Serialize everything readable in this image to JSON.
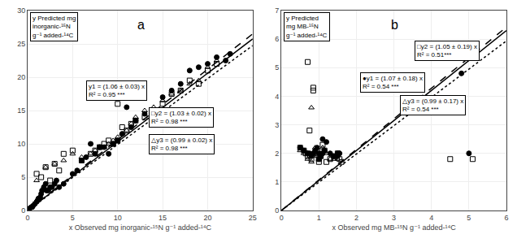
{
  "chart_data": [
    {
      "type": "scatter",
      "title": "a",
      "x_label": "x Observed mg inorganic-¹⁵N g⁻¹ added-¹⁴C",
      "y_label": "y Predicted mg\ninorganic-¹⁵N\ng⁻¹ added-¹⁴C",
      "xlim": [
        0,
        25
      ],
      "ylim": [
        0,
        30
      ],
      "xticks": [
        0,
        5,
        10,
        15,
        20,
        25
      ],
      "yticks": [
        0,
        5,
        10,
        15,
        20,
        25,
        30
      ],
      "grid": true,
      "series": [
        {
          "type": "line",
          "line_style": "dotted",
          "color": "#000000",
          "x": [
            0,
            25
          ],
          "values": [
            0,
            24.75
          ]
        },
        {
          "type": "line",
          "line_style": "solid",
          "color": "#000000",
          "x": [
            0,
            25
          ],
          "values": [
            0,
            25.75
          ]
        },
        {
          "type": "line",
          "line_style": "dashed",
          "color": "#000000",
          "x": [
            0,
            25
          ],
          "values": [
            0,
            26.5
          ]
        },
        {
          "type": "scatter",
          "marker": "circle",
          "color": "#000000",
          "x": [
            0.2,
            0.4,
            0.5,
            0.6,
            0.8,
            1.0,
            1.1,
            1.2,
            1.4,
            1.5,
            1.6,
            1.8,
            2.0,
            2.1,
            2.3,
            2.5,
            2.7,
            3.0,
            3.2,
            3.5,
            4.0,
            5.0,
            5.5,
            6.0,
            6.5,
            7.0,
            7.5,
            8.0,
            8.5,
            9.0,
            9.5,
            10.0,
            10.5,
            11.0,
            11.5,
            12.0,
            13.0,
            14.0,
            15.0,
            16.0,
            17.0,
            18.0,
            19.0,
            20.0,
            21.0,
            22.0,
            22.5
          ],
          "values": [
            0.3,
            0.5,
            0.5,
            0.7,
            1.0,
            1.3,
            1.5,
            1.8,
            2.0,
            2.5,
            3.0,
            3.5,
            4.0,
            3.0,
            3.0,
            3.5,
            3.5,
            4.0,
            4.5,
            3.5,
            4.0,
            5.5,
            6.0,
            7.5,
            8.0,
            10.0,
            8.5,
            9.5,
            9.5,
            8.5,
            10.0,
            10.5,
            11.5,
            15.5,
            12.5,
            13.5,
            14.5,
            15.0,
            17.0,
            18.0,
            19.0,
            21.0,
            21.5,
            22.0,
            23.0,
            22.5,
            23.5
          ]
        },
        {
          "type": "scatter",
          "marker": "square_open",
          "color": "#000000",
          "x": [
            1.0,
            1.5,
            2.0,
            2.5,
            3.0,
            3.5,
            4.0,
            5.0,
            6.0,
            7.0,
            7.5,
            8.0,
            8.5,
            9.0,
            9.5,
            10.0,
            10.5,
            11.0,
            11.5,
            12.0,
            13.0,
            14.0,
            15.0,
            16.0,
            17.0,
            18.0,
            19.0,
            20.0,
            21.0,
            10.0
          ],
          "values": [
            5.5,
            5.0,
            6.5,
            4.5,
            7.0,
            6.0,
            8.5,
            9.0,
            7.5,
            8.5,
            9.0,
            9.5,
            10.0,
            10.5,
            10.0,
            10.5,
            12.5,
            12.0,
            13.0,
            13.5,
            14.0,
            15.0,
            16.0,
            17.5,
            18.0,
            19.5,
            19.0,
            21.0,
            22.0,
            16.0
          ]
        },
        {
          "type": "scatter",
          "marker": "triangle_open",
          "color": "#000000",
          "x": [
            1.0,
            2.0,
            3.0,
            4.0,
            5.0,
            6.0,
            7.0,
            7.5,
            8.0,
            8.5,
            9.0,
            9.5,
            10.0,
            10.5,
            11.0,
            11.5,
            12.0,
            13.0,
            14.0,
            15.0,
            16.0,
            17.0,
            18.0,
            19.0,
            20.0,
            21.0
          ],
          "values": [
            4.5,
            6.5,
            7.0,
            7.5,
            8.5,
            8.0,
            8.5,
            9.0,
            9.5,
            9.5,
            10.0,
            10.5,
            11.0,
            11.5,
            12.0,
            13.0,
            14.0,
            15.0,
            15.5,
            16.5,
            17.5,
            18.0,
            19.0,
            19.5,
            21.5,
            22.5
          ]
        }
      ],
      "annotations": [
        {
          "text": "y1 = (1.06 ± 0.03) x\nR² = 0.95 ***",
          "x": 6.5,
          "y": 19.5
        },
        {
          "text": "□y2 = (1.03 ± 0.02) x\nR² = 0.98 ***",
          "x": 13.5,
          "y": 15.5
        },
        {
          "text": "△y3 = (0.99 ± 0.02) x\nR² = 0.98 ***",
          "x": 13.5,
          "y": 11.5
        }
      ]
    },
    {
      "type": "scatter",
      "title": "b",
      "x_label": "x Observed mg MB-¹⁵N g⁻¹ added-¹⁴C",
      "y_label": "y Predicted\nmg MB-¹⁵N\ng⁻¹ added-¹⁴C",
      "xlim": [
        0,
        6
      ],
      "ylim": [
        0,
        7
      ],
      "xticks": [
        0,
        1,
        2,
        3,
        4,
        5,
        6
      ],
      "yticks": [
        0,
        1,
        2,
        3,
        4,
        5,
        6,
        7
      ],
      "grid": true,
      "series": [
        {
          "type": "line",
          "line_style": "dotted",
          "color": "#000000",
          "x": [
            0,
            6
          ],
          "values": [
            0,
            5.94
          ]
        },
        {
          "type": "line",
          "line_style": "solid",
          "color": "#000000",
          "x": [
            0,
            6
          ],
          "values": [
            0,
            6.3
          ]
        },
        {
          "type": "line",
          "line_style": "dashed",
          "color": "#000000",
          "x": [
            0,
            6
          ],
          "values": [
            0,
            6.42
          ]
        },
        {
          "type": "scatter",
          "marker": "circle",
          "color": "#000000",
          "x": [
            0.5,
            0.6,
            0.7,
            0.75,
            0.8,
            0.85,
            0.9,
            0.95,
            1.0,
            1.0,
            1.05,
            1.1,
            1.1,
            1.15,
            1.2,
            1.3,
            1.4,
            1.5,
            1.5,
            1.55,
            5.0,
            4.8
          ],
          "values": [
            2.2,
            2.1,
            2.0,
            2.0,
            1.9,
            2.0,
            2.1,
            2.2,
            1.8,
            2.0,
            1.9,
            2.5,
            2.0,
            2.1,
            2.4,
            2.0,
            1.9,
            1.9,
            2.0,
            2.0,
            2.0,
            4.8
          ]
        },
        {
          "type": "scatter",
          "marker": "square_open",
          "color": "#000000",
          "x": [
            0.5,
            0.6,
            0.65,
            0.7,
            0.75,
            0.8,
            0.85,
            0.9,
            0.95,
            1.0,
            1.0,
            1.05,
            1.1,
            1.15,
            1.2,
            1.3,
            1.4,
            1.5,
            1.55,
            1.6,
            0.7,
            0.85,
            4.5,
            5.1
          ],
          "values": [
            2.2,
            2.1,
            2.0,
            1.9,
            2.8,
            1.8,
            4.2,
            2.0,
            2.1,
            1.7,
            1.8,
            1.9,
            2.3,
            2.1,
            1.7,
            1.8,
            1.9,
            2.0,
            1.8,
            1.7,
            5.2,
            4.3,
            1.8,
            1.8
          ]
        },
        {
          "type": "scatter",
          "marker": "triangle_open",
          "color": "#000000",
          "x": [
            0.5,
            0.6,
            0.7,
            0.75,
            0.8,
            0.85,
            0.9,
            0.95,
            1.0,
            1.05,
            1.1,
            1.2,
            1.3,
            1.4,
            1.5,
            0.8
          ],
          "values": [
            2.1,
            2.0,
            1.8,
            1.9,
            1.7,
            2.0,
            2.2,
            1.9,
            1.8,
            2.0,
            2.2,
            2.0,
            1.8,
            1.8,
            1.8,
            3.6
          ]
        }
      ],
      "annotations": [
        {
          "text": "●y1 = (1.07 ± 0.18) x\nR² = 0.54 ***",
          "x": 2.1,
          "y": 4.85
        },
        {
          "text": "□y2 = (1.05 ± 0.19) x\nR² = 0.51***",
          "x": 3.55,
          "y": 5.95
        },
        {
          "text": "△y3 = (0.99 ± 0.17) x\nR² = 0.54 ***",
          "x": 3.15,
          "y": 4.05
        }
      ]
    }
  ]
}
